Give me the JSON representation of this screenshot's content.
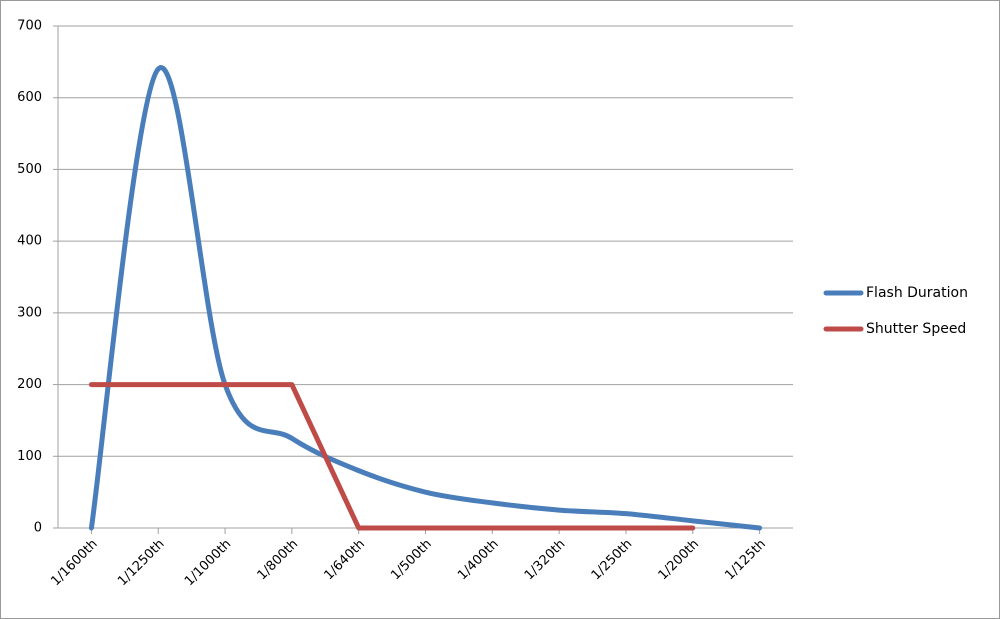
{
  "chart_data": {
    "type": "line",
    "categories": [
      "1/1600th",
      "1/1250th",
      "1/1000th",
      "1/800th",
      "1/640th",
      "1/500th",
      "1/400th",
      "1/320th",
      "1/250th",
      "1/200th",
      "1/125th"
    ],
    "series": [
      {
        "name": "Flash Duration",
        "color": "#4a7ebb",
        "smooth": true,
        "values": [
          0,
          640,
          200,
          125,
          80,
          50,
          35,
          25,
          20,
          10,
          0
        ]
      },
      {
        "name": "Shutter Speed",
        "color": "#be4b48",
        "smooth": false,
        "values": [
          200,
          200,
          200,
          200,
          0,
          0,
          0,
          0,
          0,
          0,
          null
        ]
      }
    ],
    "ylim": [
      0,
      700
    ],
    "yticks": [
      0,
      100,
      200,
      300,
      400,
      500,
      600,
      700
    ],
    "grid": true,
    "legend": "right"
  }
}
